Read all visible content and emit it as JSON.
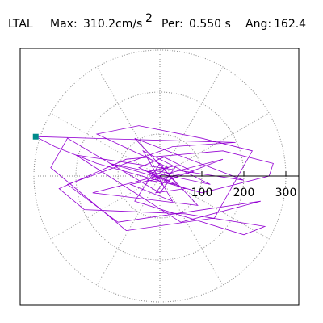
{
  "chart_data": {
    "type": "polar",
    "station": "LTAL",
    "max_label": "Max:",
    "max": 310.2,
    "unit": "cm/s",
    "unit_power": "2",
    "period_label": "Per:",
    "period": "0.550 s",
    "angle_label": "Ang:",
    "angle": 162.4,
    "rlim": [
      0,
      300
    ],
    "rticks": [
      100,
      200,
      300
    ],
    "theta_grid": [
      0,
      30,
      60,
      90,
      120,
      150,
      180,
      210,
      240,
      270,
      300,
      330
    ],
    "trace_color": "#9400d3",
    "marker_color": "#008b8b",
    "x": [
      0,
      20,
      -30,
      40,
      -10,
      60,
      -50,
      10,
      80,
      -70,
      30,
      -40,
      120,
      -120,
      20,
      150,
      -160,
      90,
      -60,
      200,
      -200,
      50,
      240,
      -100,
      -220,
      30,
      180,
      -295.7,
      -250,
      -150,
      100,
      260,
      270,
      150,
      -80,
      -240,
      -180,
      60,
      250,
      200,
      -60,
      0,
      40,
      -30,
      20,
      -150,
      -50,
      100,
      220,
      130,
      -80,
      -260,
      -220,
      0,
      35,
      -25,
      10
    ],
    "y": [
      0,
      -15,
      10,
      25,
      -40,
      -30,
      20,
      45,
      10,
      -20,
      -60,
      60,
      -20,
      30,
      -10,
      40,
      -40,
      -70,
      90,
      -10,
      50,
      -110,
      -60,
      -110,
      -20,
      70,
      80,
      93.8,
      70,
      30,
      -40,
      0,
      30,
      60,
      40,
      -30,
      -80,
      -90,
      -120,
      -140,
      -60,
      30,
      -20,
      -10,
      20,
      100,
      120,
      90,
      60,
      -100,
      -130,
      20,
      90,
      -40,
      5,
      15,
      -25
    ]
  }
}
